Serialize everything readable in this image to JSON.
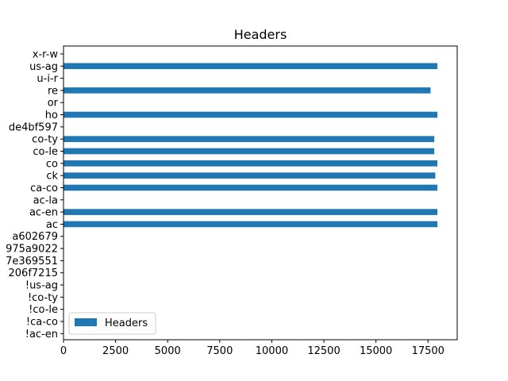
{
  "chart_data": {
    "type": "bar",
    "orientation": "horizontal",
    "title": "Headers",
    "xlabel": "",
    "ylabel": "",
    "xlim": [
      0,
      18900
    ],
    "xticks": [
      0,
      2500,
      5000,
      7500,
      10000,
      12500,
      15000,
      17500
    ],
    "grid": false,
    "legend": {
      "position": "lower-left",
      "entries": [
        "Headers"
      ]
    },
    "bar_color": "#1f77b4",
    "categories": [
      "!ac-en",
      "!ca-co",
      "!co-le",
      "!co-ty",
      "!us-ag",
      "206f7215",
      "7e369551",
      "975a9022",
      "a602679",
      "ac",
      "ac-en",
      "ac-la",
      "ca-co",
      "ck",
      "co",
      "co-le",
      "co-ty",
      "de4bf597",
      "ho",
      "or",
      "re",
      "u-i-r",
      "us-ag",
      "x-r-w"
    ],
    "series": [
      {
        "name": "Headers",
        "values": [
          0,
          0,
          0,
          0,
          0,
          0,
          0,
          0,
          0,
          17950,
          17950,
          0,
          17950,
          17850,
          17950,
          17800,
          17800,
          0,
          17950,
          0,
          17620,
          0,
          17950,
          0
        ]
      }
    ]
  }
}
